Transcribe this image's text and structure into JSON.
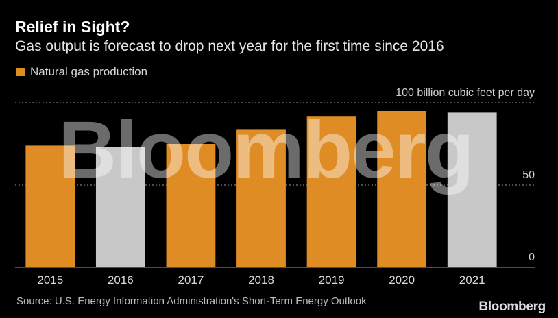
{
  "title": "Relief in Sight?",
  "subtitle": "Gas output is forecast to drop next year for the first time since 2016",
  "legend": {
    "label": "Natural gas production"
  },
  "source": "Source: U.S. Energy Information Administration's Short-Term Energy Outlook",
  "brand": "Bloomberg",
  "watermark": "Bloomberg",
  "colors": {
    "background": "#000000",
    "bar_highlight": "#e08c24",
    "bar_muted": "#c8c8c8",
    "grid": "#9a9a9a"
  },
  "chart_data": {
    "type": "bar",
    "title": "Relief in Sight?",
    "ylabel": "100 billion cubic feet per day",
    "ylim": [
      0,
      100
    ],
    "yticks": [
      0,
      50,
      100
    ],
    "ytick_labels": [
      "0",
      "50",
      "100 billion cubic feet per day"
    ],
    "categories": [
      "2015",
      "2016",
      "2017",
      "2018",
      "2019",
      "2020",
      "2021"
    ],
    "series": [
      {
        "name": "Natural gas production",
        "values": [
          74,
          73,
          75,
          84,
          92,
          95,
          94
        ]
      }
    ],
    "bar_colors": [
      "#e08c24",
      "#c8c8c8",
      "#e08c24",
      "#e08c24",
      "#e08c24",
      "#e08c24",
      "#c8c8c8"
    ],
    "grid": true,
    "legend_position": "top-left"
  }
}
